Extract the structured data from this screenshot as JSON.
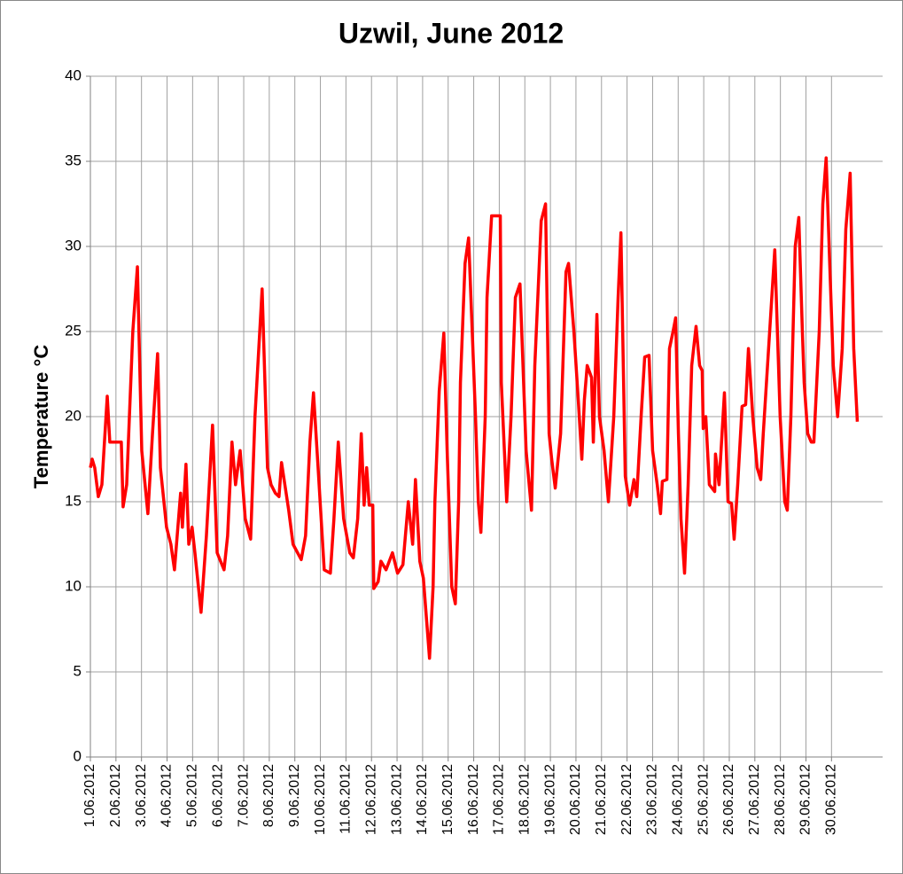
{
  "chart_data": {
    "type": "line",
    "title": "Uzwil, June 2012",
    "y_label": "Temperature °C",
    "x": [
      1.0,
      1.07,
      1.17,
      1.31,
      1.45,
      1.55,
      1.66,
      1.76,
      2.0,
      2.21,
      2.28,
      2.42,
      2.66,
      2.84,
      3.01,
      3.25,
      3.43,
      3.63,
      3.74,
      3.98,
      4.15,
      4.29,
      4.53,
      4.6,
      4.74,
      4.85,
      4.98,
      5.09,
      5.33,
      5.54,
      5.78,
      5.96,
      6.23,
      6.37,
      6.54,
      6.68,
      6.86,
      7.06,
      7.27,
      7.44,
      7.72,
      7.93,
      8.07,
      8.24,
      8.38,
      8.48,
      8.76,
      8.93,
      9.25,
      9.42,
      9.59,
      9.73,
      9.91,
      10.15,
      10.39,
      10.53,
      10.7,
      10.91,
      11.15,
      11.29,
      11.46,
      11.6,
      11.71,
      11.81,
      11.91,
      12.05,
      12.09,
      12.26,
      12.37,
      12.57,
      12.82,
      13.02,
      13.23,
      13.44,
      13.61,
      13.72,
      13.89,
      14.03,
      14.27,
      14.41,
      14.48,
      14.65,
      14.83,
      14.96,
      15.14,
      15.28,
      15.41,
      15.48,
      15.66,
      15.8,
      16.07,
      16.18,
      16.28,
      16.45,
      16.52,
      16.7,
      17.04,
      17.08,
      17.29,
      17.46,
      17.63,
      17.81,
      18.05,
      18.26,
      18.39,
      18.64,
      18.81,
      18.95,
      19.05,
      19.19,
      19.4,
      19.61,
      19.71,
      19.92,
      20.09,
      20.23,
      20.33,
      20.44,
      20.61,
      20.68,
      20.82,
      20.92,
      21.1,
      21.27,
      21.48,
      21.65,
      21.76,
      21.93,
      22.1,
      22.27,
      22.38,
      22.55,
      22.69,
      22.86,
      23.0,
      23.18,
      23.31,
      23.38,
      23.56,
      23.66,
      23.8,
      23.9,
      24.01,
      24.11,
      24.25,
      24.39,
      24.53,
      24.7,
      24.84,
      24.94,
      24.98,
      25.08,
      25.22,
      25.43,
      25.46,
      25.6,
      25.81,
      25.95,
      26.09,
      26.19,
      26.33,
      26.5,
      26.64,
      26.75,
      26.92,
      27.09,
      27.23,
      27.33,
      27.58,
      27.78,
      27.99,
      28.17,
      28.27,
      28.41,
      28.58,
      28.72,
      28.86,
      28.93,
      29.07,
      29.21,
      29.31,
      29.52,
      29.66,
      29.79,
      29.93,
      30.07,
      30.24,
      30.42,
      30.56,
      30.73,
      30.87,
      31.01
    ],
    "series": [
      {
        "name": "Temperature",
        "color": "#ff0000",
        "values": [
          17,
          17.5,
          17,
          15.3,
          16,
          18.5,
          21.2,
          18.5,
          18.5,
          18.5,
          14.7,
          16,
          25,
          28.8,
          18,
          14.3,
          19,
          23.7,
          17,
          13.5,
          12.5,
          11,
          15.5,
          13.5,
          17.2,
          12.5,
          13.5,
          12,
          8.5,
          13,
          19.5,
          12,
          11,
          13,
          18.5,
          16,
          18,
          14,
          12.8,
          20,
          27.5,
          17,
          16,
          15.5,
          15.3,
          17.3,
          14.5,
          12.5,
          11.6,
          13,
          18.5,
          21.4,
          17,
          11,
          10.8,
          14,
          18.5,
          14,
          12,
          11.7,
          14,
          19,
          14.8,
          17,
          14.8,
          14.8,
          9.9,
          10.3,
          11.5,
          11,
          12,
          10.8,
          11.3,
          15,
          12.5,
          16.3,
          11.5,
          10.5,
          5.8,
          10,
          15,
          21.5,
          24.9,
          18,
          10,
          9,
          15,
          22,
          29,
          30.5,
          20,
          15,
          13.2,
          20,
          27,
          31.8,
          31.8,
          22,
          15,
          20,
          27,
          27.8,
          18,
          14.5,
          23,
          31.5,
          32.5,
          19,
          17.5,
          15.8,
          19,
          28.5,
          29,
          25,
          21,
          17.5,
          21,
          23,
          22.3,
          18.5,
          26,
          20,
          18,
          15,
          20,
          27,
          30.8,
          16.5,
          14.8,
          16.3,
          15.3,
          20,
          23.5,
          23.6,
          18,
          16,
          14.3,
          16.2,
          16.3,
          24,
          25,
          25.8,
          19,
          14,
          10.8,
          16,
          23,
          25.3,
          23,
          22.7,
          19.3,
          20,
          16,
          15.6,
          17.8,
          16,
          21.4,
          15,
          14.9,
          12.8,
          16,
          20.6,
          20.7,
          24,
          20,
          17,
          16.3,
          19,
          25,
          29.8,
          20,
          15,
          14.5,
          20,
          30,
          31.7,
          25,
          22,
          19,
          18.5,
          18.5,
          25,
          32.5,
          35.2,
          29,
          23,
          20,
          24,
          31,
          34.3,
          24,
          19.7
        ]
      }
    ],
    "xlim": [
      1,
      32
    ],
    "xticks": [
      {
        "value": 1,
        "label": "1.06.2012"
      },
      {
        "value": 2,
        "label": "2.06.2012"
      },
      {
        "value": 3,
        "label": "3.06.2012"
      },
      {
        "value": 4,
        "label": "4.06.2012"
      },
      {
        "value": 5,
        "label": "5.06.2012"
      },
      {
        "value": 6,
        "label": "6.06.2012"
      },
      {
        "value": 7,
        "label": "7.06.2012"
      },
      {
        "value": 8,
        "label": "8.06.2012"
      },
      {
        "value": 9,
        "label": "9.06.2012"
      },
      {
        "value": 10,
        "label": "10.06.2012"
      },
      {
        "value": 11,
        "label": "11.06.2012"
      },
      {
        "value": 12,
        "label": "12.06.2012"
      },
      {
        "value": 13,
        "label": "13.06.2012"
      },
      {
        "value": 14,
        "label": "14.06.2012"
      },
      {
        "value": 15,
        "label": "15.06.2012"
      },
      {
        "value": 16,
        "label": "16.06.2012"
      },
      {
        "value": 17,
        "label": "17.06.2012"
      },
      {
        "value": 18,
        "label": "18.06.2012"
      },
      {
        "value": 19,
        "label": "19.06.2012"
      },
      {
        "value": 20,
        "label": "20.06.2012"
      },
      {
        "value": 21,
        "label": "21.06.2012"
      },
      {
        "value": 22,
        "label": "22.06.2012"
      },
      {
        "value": 23,
        "label": "23.06.2012"
      },
      {
        "value": 24,
        "label": "24.06.2012"
      },
      {
        "value": 25,
        "label": "25.06.2012"
      },
      {
        "value": 26,
        "label": "26.06.2012"
      },
      {
        "value": 27,
        "label": "27.06.2012"
      },
      {
        "value": 28,
        "label": "28.06.2012"
      },
      {
        "value": 29,
        "label": "29.06.2012"
      },
      {
        "value": 30,
        "label": "30.06.2012"
      }
    ],
    "ylim": [
      0,
      40
    ],
    "yticks": [
      0,
      5,
      10,
      15,
      20,
      25,
      30,
      35,
      40
    ],
    "grid": true
  }
}
